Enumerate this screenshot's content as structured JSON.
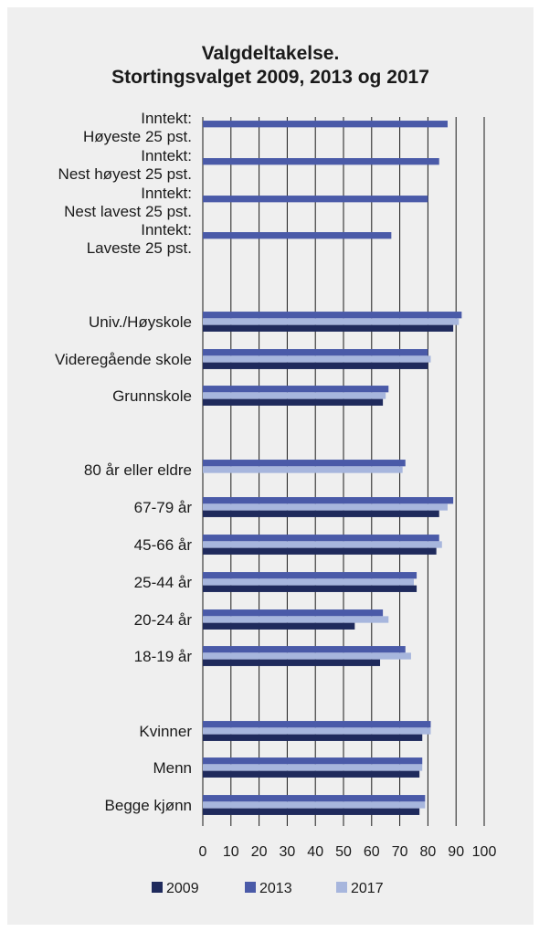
{
  "chart_data": {
    "type": "bar",
    "orientation": "horizontal",
    "title_lines": [
      "Valgdeltakelse.",
      "Stortingsvalget 2009, 2013 og 2017"
    ],
    "xlim": [
      0,
      100
    ],
    "xticks": [
      0,
      10,
      20,
      30,
      40,
      50,
      60,
      70,
      80,
      90,
      100
    ],
    "legend_position": "bottom",
    "series": [
      {
        "name": "2009",
        "color": "#1f2a5c"
      },
      {
        "name": "2013",
        "color": "#4a5aa8"
      },
      {
        "name": "2017",
        "color": "#a7b6dd"
      }
    ],
    "categories": [
      {
        "label": [
          "Inntekt:",
          "Høyeste 25 pst."
        ],
        "values": [
          null,
          87,
          null
        ]
      },
      {
        "label": [
          "Inntekt:",
          "Nest høyest 25 pst."
        ],
        "values": [
          null,
          84,
          null
        ]
      },
      {
        "label": [
          "Inntekt:",
          "Nest lavest 25 pst."
        ],
        "values": [
          null,
          80,
          null
        ]
      },
      {
        "label": [
          "Inntekt:",
          "Laveste 25 pst."
        ],
        "values": [
          null,
          67,
          null
        ]
      },
      {
        "label": [
          "Univ./Høyskole"
        ],
        "values": [
          89,
          92,
          91
        ]
      },
      {
        "label": [
          "Videregående skole"
        ],
        "values": [
          80,
          80,
          81
        ]
      },
      {
        "label": [
          "Grunnskole"
        ],
        "values": [
          64,
          66,
          65
        ]
      },
      {
        "label": [
          "80 år eller eldre"
        ],
        "values": [
          null,
          72,
          71
        ]
      },
      {
        "label": [
          "67-79 år"
        ],
        "values": [
          84,
          89,
          87
        ]
      },
      {
        "label": [
          "45-66 år"
        ],
        "values": [
          83,
          84,
          85
        ]
      },
      {
        "label": [
          "25-44 år"
        ],
        "values": [
          76,
          76,
          75
        ]
      },
      {
        "label": [
          "20-24 år"
        ],
        "values": [
          54,
          64,
          66
        ]
      },
      {
        "label": [
          "18-19 år"
        ],
        "values": [
          63,
          72,
          74
        ]
      },
      {
        "label": [
          "Kvinner"
        ],
        "values": [
          78,
          81,
          81
        ]
      },
      {
        "label": [
          "Menn"
        ],
        "values": [
          77,
          78,
          78
        ]
      },
      {
        "label": [
          "Begge kjønn"
        ],
        "values": [
          77,
          79,
          79
        ]
      }
    ]
  }
}
